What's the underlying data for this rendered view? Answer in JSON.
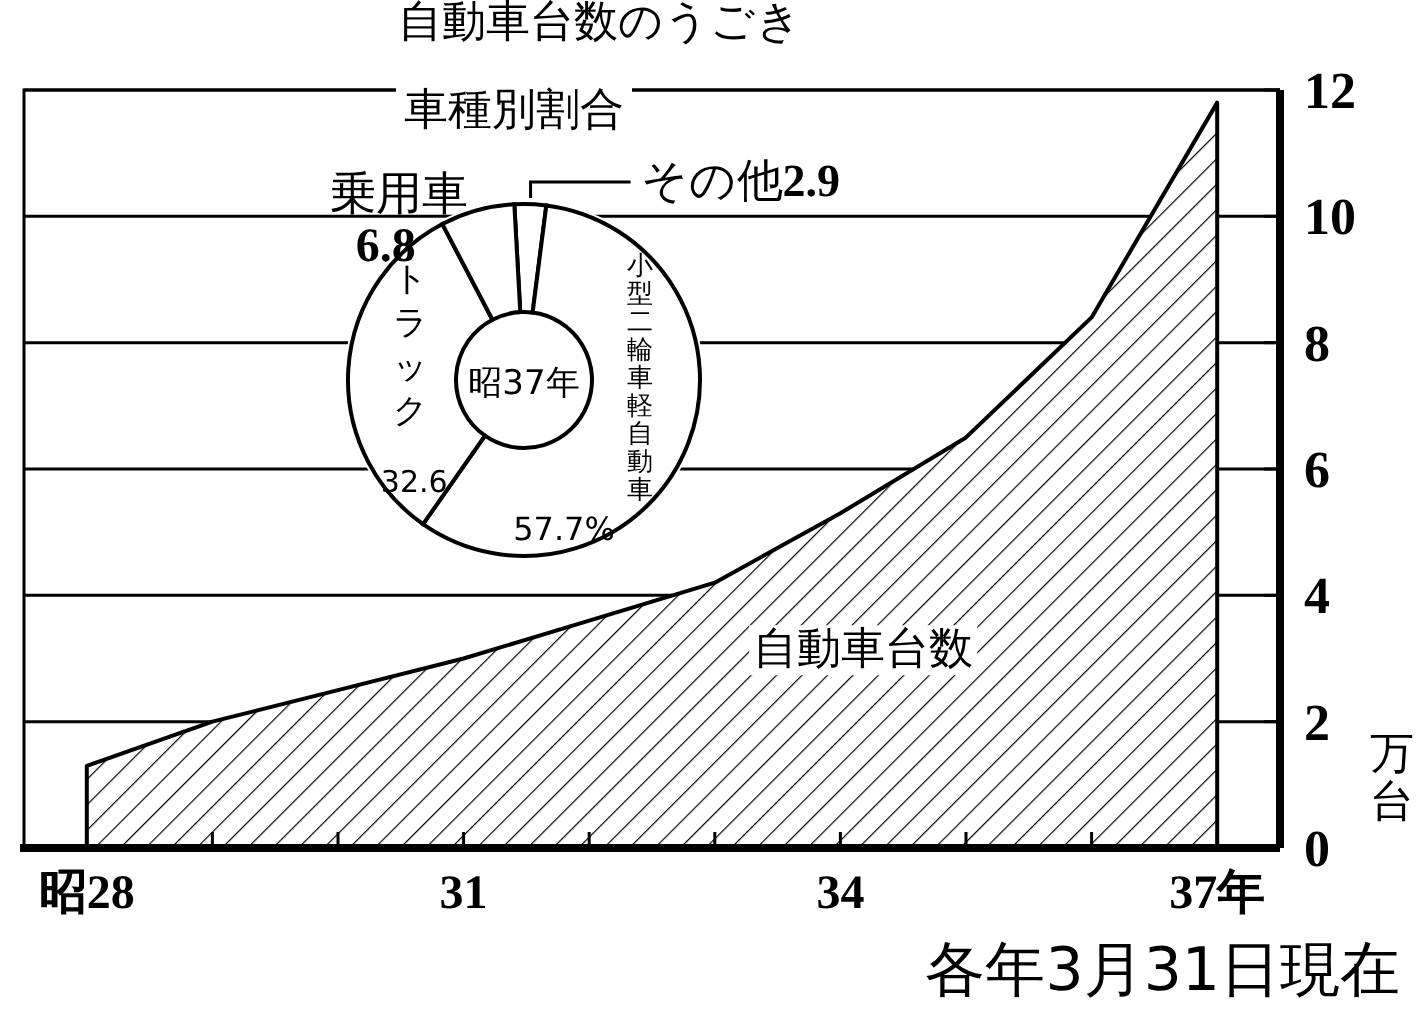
{
  "chart_data": [
    {
      "type": "area",
      "title": "自動車台数のうごき",
      "ylabel": "万台",
      "annotations": [
        "各年3月31日現在"
      ],
      "x": [
        28,
        29,
        30,
        31,
        32,
        33,
        34,
        35,
        36,
        37
      ],
      "series": [
        {
          "name": "自動車台数",
          "color": "#000000",
          "values": [
            1.3,
            2.0,
            2.5,
            3.0,
            3.6,
            4.2,
            5.3,
            6.5,
            8.4,
            11.8
          ]
        }
      ],
      "xlim": [
        27.5,
        37.5
      ],
      "xticks": [
        {
          "value": 28,
          "label": "昭28"
        },
        {
          "value": 29,
          "label": null
        },
        {
          "value": 30,
          "label": null
        },
        31,
        {
          "value": 32,
          "label": null
        },
        {
          "value": 33,
          "label": null
        },
        34,
        {
          "value": 35,
          "label": null
        },
        {
          "value": 36,
          "label": null
        },
        {
          "value": 37,
          "label": "37年"
        }
      ],
      "ylim": [
        0,
        12
      ],
      "yticks": [
        0,
        2,
        4,
        6,
        8,
        10,
        12
      ],
      "grid": "y",
      "legend": false
    },
    {
      "type": "donut",
      "title": "車種別割合",
      "annotations": [
        "昭37年"
      ],
      "categories": [
        "その他",
        "小型二輪車軽自動車",
        "トラック",
        "乗用車"
      ],
      "values": [
        2.9,
        57.7,
        32.6,
        6.8
      ],
      "value_labels": [
        "2.9",
        "57.7%",
        "32.6",
        "6.8"
      ],
      "colors": [
        "#ffffff",
        "#ffffff",
        "#ffffff",
        "#ffffff"
      ],
      "legend": false
    }
  ]
}
